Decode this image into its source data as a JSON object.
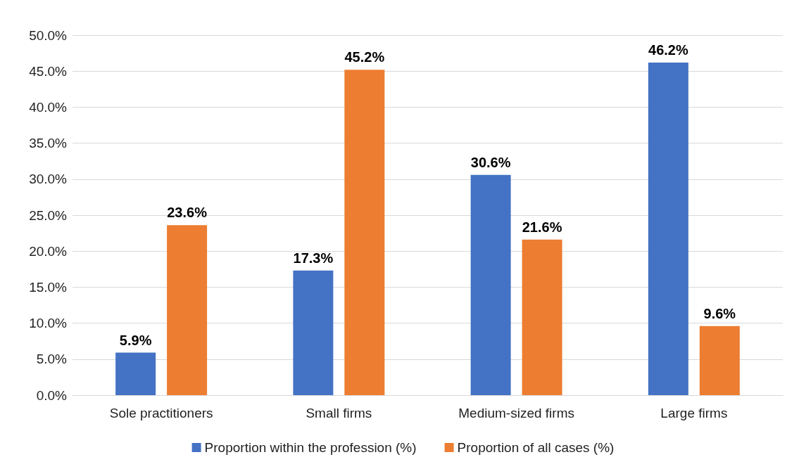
{
  "chart_data": {
    "type": "bar",
    "categories": [
      "Sole practitioners",
      "Small firms",
      "Medium-sized firms",
      "Large firms"
    ],
    "series": [
      {
        "name": "Proportion within the profession (%)",
        "color": "#4472c4",
        "values": [
          5.9,
          17.3,
          30.6,
          46.2
        ],
        "value_labels": [
          "5.9%",
          "17.3%",
          "30.6%",
          "46.2%"
        ]
      },
      {
        "name": "Proportion of all cases (%)",
        "color": "#ed7d31",
        "values": [
          23.6,
          45.2,
          21.6,
          9.6
        ],
        "value_labels": [
          "23.6%",
          "45.2%",
          "21.6%",
          "9.6%"
        ]
      }
    ],
    "ylim": [
      0,
      50
    ],
    "yticks": [
      {
        "value": 0,
        "label": "0.0%"
      },
      {
        "value": 5,
        "label": "5.0%"
      },
      {
        "value": 10,
        "label": "10.0%"
      },
      {
        "value": 15,
        "label": "15.0%"
      },
      {
        "value": 20,
        "label": "20.0%"
      },
      {
        "value": 25,
        "label": "25.0%"
      },
      {
        "value": 30,
        "label": "30.0%"
      },
      {
        "value": 35,
        "label": "35.0%"
      },
      {
        "value": 40,
        "label": "40.0%"
      },
      {
        "value": 45,
        "label": "45.0%"
      },
      {
        "value": 50,
        "label": "50.0%"
      }
    ],
    "grid": "y",
    "legend": "bottom"
  }
}
